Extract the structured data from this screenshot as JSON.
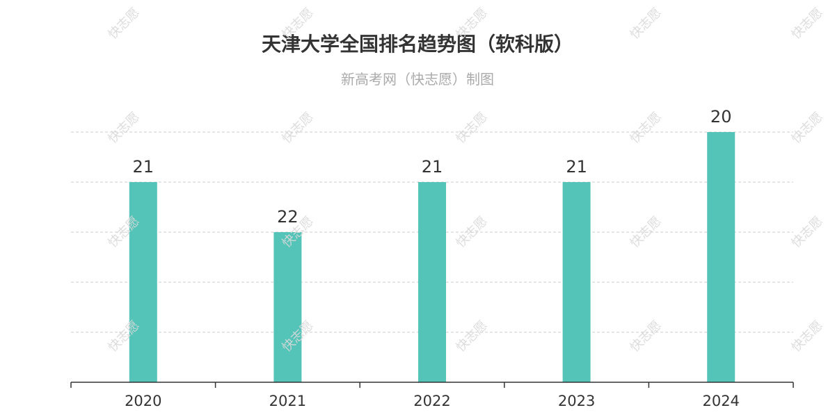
{
  "chart_data": {
    "type": "bar",
    "title": "天津大学全国排名趋势图（软科版）",
    "subtitle": "新高考网（快志愿）制图",
    "categories": [
      "2020",
      "2021",
      "2022",
      "2023",
      "2024"
    ],
    "values": [
      21,
      22,
      21,
      21,
      20
    ],
    "data_labels": [
      "21",
      "22",
      "21",
      "21",
      "20"
    ],
    "bar_color": "#55c4b8",
    "grid": true,
    "legend": "none",
    "value_axis": {
      "min": 25,
      "max": 20,
      "inverted": true,
      "tick_step": 1,
      "tick_labels_shown": false
    }
  },
  "watermark": "快志愿",
  "colors": {
    "title": "#333333",
    "subtitle": "#aaaaaa",
    "axis": "#333333",
    "grid": "#cccccc"
  }
}
